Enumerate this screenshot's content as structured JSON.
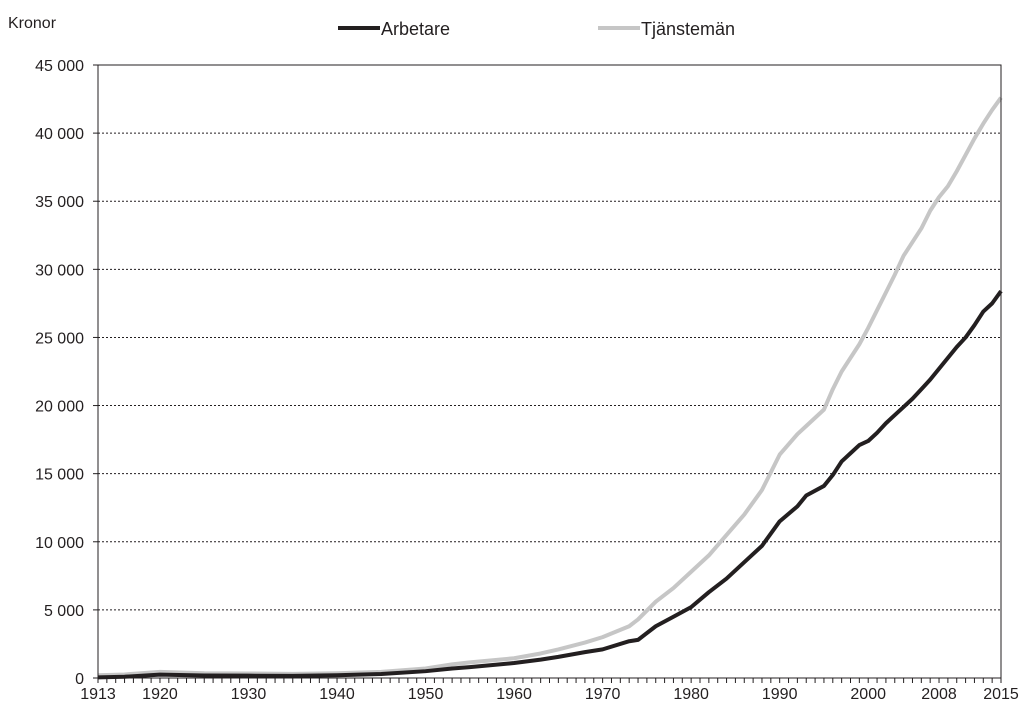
{
  "chart_data": {
    "type": "line",
    "title": "",
    "xlabel": "",
    "ylabel": "Kronor",
    "xlim": [
      1913,
      2015
    ],
    "ylim": [
      0,
      45000
    ],
    "grid": "horizontal-dotted",
    "legend_position": "top-center",
    "x_ticks": [
      1913,
      1920,
      1930,
      1940,
      1950,
      1960,
      1970,
      1980,
      1990,
      2000,
      2008,
      2015
    ],
    "y_ticks": [
      0,
      5000,
      10000,
      15000,
      20000,
      25000,
      30000,
      35000,
      40000,
      45000
    ],
    "y_tick_labels": [
      "0",
      "5 000",
      "10 000",
      "15 000",
      "20 000",
      "25 000",
      "30 000",
      "35 000",
      "40 000",
      "45 000"
    ],
    "series": [
      {
        "name": "Arbetare",
        "color": "#231f20",
        "points": [
          [
            1913,
            50
          ],
          [
            1916,
            90
          ],
          [
            1920,
            250
          ],
          [
            1925,
            180
          ],
          [
            1930,
            170
          ],
          [
            1935,
            160
          ],
          [
            1940,
            200
          ],
          [
            1945,
            290
          ],
          [
            1950,
            500
          ],
          [
            1953,
            700
          ],
          [
            1955,
            800
          ],
          [
            1960,
            1100
          ],
          [
            1963,
            1350
          ],
          [
            1965,
            1550
          ],
          [
            1968,
            1900
          ],
          [
            1970,
            2100
          ],
          [
            1973,
            2700
          ],
          [
            1974,
            2800
          ],
          [
            1976,
            3800
          ],
          [
            1978,
            4500
          ],
          [
            1980,
            5200
          ],
          [
            1982,
            6300
          ],
          [
            1984,
            7300
          ],
          [
            1986,
            8500
          ],
          [
            1988,
            9700
          ],
          [
            1990,
            11500
          ],
          [
            1992,
            12600
          ],
          [
            1993,
            13400
          ],
          [
            1995,
            14100
          ],
          [
            1996,
            14900
          ],
          [
            1997,
            15900
          ],
          [
            1998,
            16500
          ],
          [
            1999,
            17100
          ],
          [
            2000,
            17400
          ],
          [
            2001,
            18000
          ],
          [
            2002,
            18700
          ],
          [
            2003,
            19300
          ],
          [
            2004,
            19900
          ],
          [
            2005,
            20500
          ],
          [
            2006,
            21200
          ],
          [
            2007,
            21900
          ],
          [
            2008,
            22700
          ],
          [
            2009,
            23500
          ],
          [
            2010,
            24300
          ],
          [
            2011,
            25000
          ],
          [
            2012,
            25900
          ],
          [
            2013,
            26900
          ],
          [
            2014,
            27500
          ],
          [
            2015,
            28400
          ]
        ]
      },
      {
        "name": "Tjänstemän",
        "color": "#c6c6c6",
        "points": [
          [
            1913,
            200
          ],
          [
            1916,
            260
          ],
          [
            1920,
            450
          ],
          [
            1925,
            350
          ],
          [
            1930,
            330
          ],
          [
            1935,
            300
          ],
          [
            1940,
            350
          ],
          [
            1945,
            450
          ],
          [
            1950,
            700
          ],
          [
            1953,
            1000
          ],
          [
            1955,
            1150
          ],
          [
            1960,
            1450
          ],
          [
            1963,
            1800
          ],
          [
            1965,
            2100
          ],
          [
            1968,
            2600
          ],
          [
            1970,
            3000
          ],
          [
            1973,
            3800
          ],
          [
            1974,
            4300
          ],
          [
            1976,
            5600
          ],
          [
            1978,
            6600
          ],
          [
            1980,
            7800
          ],
          [
            1982,
            9000
          ],
          [
            1984,
            10500
          ],
          [
            1986,
            12000
          ],
          [
            1988,
            13800
          ],
          [
            1990,
            16400
          ],
          [
            1992,
            17900
          ],
          [
            1993,
            18500
          ],
          [
            1995,
            19700
          ],
          [
            1996,
            21200
          ],
          [
            1997,
            22500
          ],
          [
            1998,
            23500
          ],
          [
            1999,
            24500
          ],
          [
            2000,
            25700
          ],
          [
            2001,
            27000
          ],
          [
            2002,
            28300
          ],
          [
            2003,
            29600
          ],
          [
            2004,
            31000
          ],
          [
            2005,
            32000
          ],
          [
            2006,
            33000
          ],
          [
            2007,
            34300
          ],
          [
            2008,
            35300
          ],
          [
            2009,
            36100
          ],
          [
            2010,
            37200
          ],
          [
            2011,
            38400
          ],
          [
            2012,
            39600
          ],
          [
            2013,
            40700
          ],
          [
            2014,
            41700
          ],
          [
            2015,
            42600
          ]
        ]
      }
    ]
  }
}
